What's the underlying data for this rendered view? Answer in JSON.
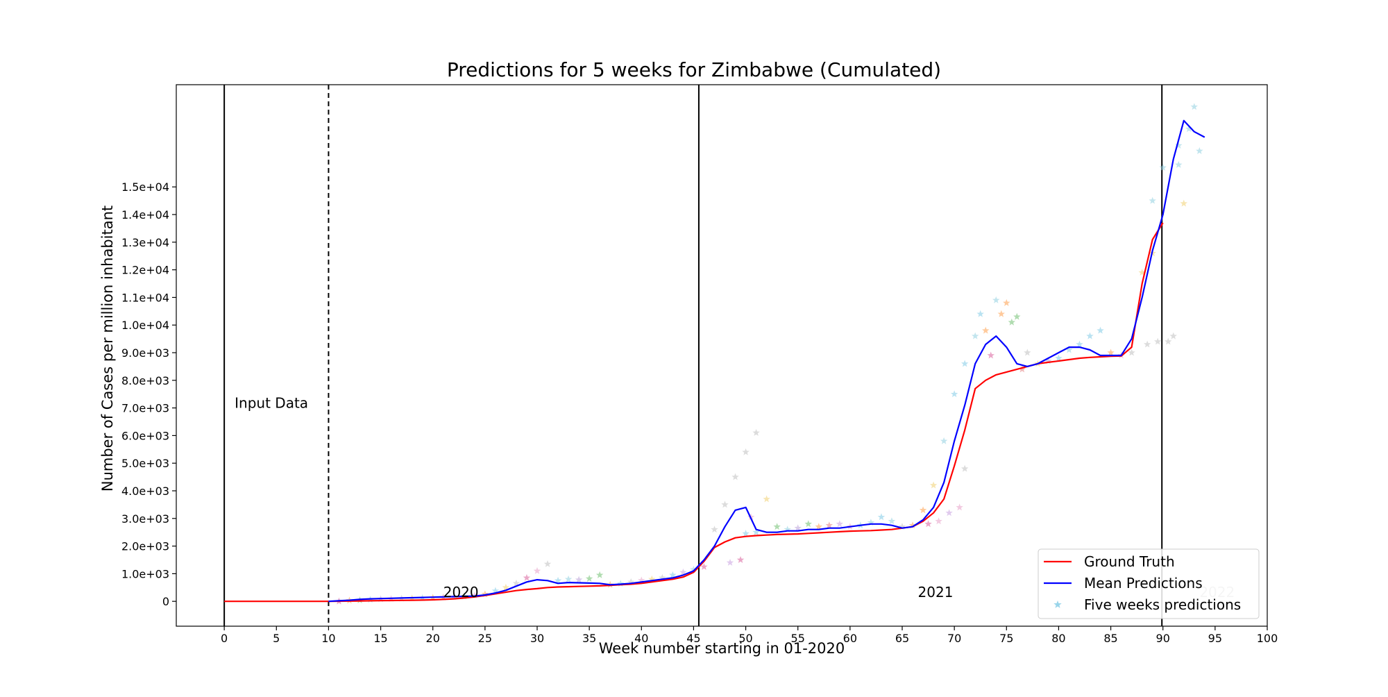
{
  "chart_data": {
    "type": "line",
    "title": "Predictions for 5 weeks for Zimbabwe (Cumulated)",
    "xlabel": "Week number starting in 01-2020",
    "ylabel": "Number of Cases per million inhabitant",
    "xlim": [
      -4.6,
      100
    ],
    "ylim": [
      -900,
      18700
    ],
    "x_ticks": [
      0,
      5,
      10,
      15,
      20,
      25,
      30,
      35,
      40,
      45,
      50,
      55,
      60,
      65,
      70,
      75,
      80,
      85,
      90,
      95,
      100
    ],
    "y_ticks": [
      0,
      1000,
      2000,
      3000,
      4000,
      5000,
      6000,
      7000,
      8000,
      9000,
      10000,
      11000,
      12000,
      13000,
      14000,
      15000
    ],
    "y_tick_labels": [
      "0",
      "1.0e+03",
      "2.0e+03",
      "3.0e+03",
      "4.0e+03",
      "5.0e+03",
      "6.0e+03",
      "7.0e+03",
      "8.0e+03",
      "9.0e+03",
      "1.0e+04",
      "1.1e+04",
      "1.2e+04",
      "1.3e+04",
      "1.4e+04",
      "1.5e+04"
    ],
    "grid": false,
    "legend_position": "lower right",
    "vertical_lines": [
      {
        "x": 0,
        "style": "solid"
      },
      {
        "x": 10,
        "style": "dashed"
      },
      {
        "x": 45.5,
        "style": "solid"
      },
      {
        "x": 89.9,
        "style": "solid"
      }
    ],
    "annotations": [
      {
        "text": "Input Data",
        "x": 1,
        "y": 7000,
        "color": "#000000"
      },
      {
        "text": "2020",
        "x": 21,
        "y": 150,
        "color": "#000000"
      },
      {
        "text": "2021",
        "x": 66.5,
        "y": 150,
        "color": "#000000"
      },
      {
        "text": "2022",
        "x": 93.5,
        "y": 150,
        "color": "#bbbbbb"
      }
    ],
    "series": [
      {
        "name": "Ground Truth",
        "color": "#ff0000",
        "x": [
          0,
          1,
          2,
          3,
          4,
          5,
          6,
          7,
          8,
          9,
          10,
          11,
          12,
          13,
          14,
          15,
          16,
          17,
          18,
          19,
          20,
          21,
          22,
          23,
          24,
          25,
          26,
          27,
          28,
          29,
          30,
          31,
          32,
          33,
          34,
          35,
          36,
          37,
          38,
          39,
          40,
          41,
          42,
          43,
          44,
          45,
          46,
          47,
          48,
          49,
          50,
          51,
          52,
          53,
          54,
          55,
          56,
          57,
          58,
          59,
          60,
          61,
          62,
          63,
          64,
          65,
          66,
          67,
          68,
          69,
          70,
          71,
          72,
          73,
          74,
          75,
          76,
          77,
          78,
          79,
          80,
          81,
          82,
          83,
          84,
          85,
          86,
          87,
          88,
          89,
          90
        ],
        "y": [
          0,
          0,
          0,
          0,
          0,
          0,
          0,
          0,
          0,
          0,
          0,
          5,
          10,
          15,
          20,
          25,
          30,
          35,
          40,
          45,
          55,
          70,
          90,
          120,
          160,
          210,
          270,
          330,
          390,
          430,
          460,
          500,
          520,
          530,
          540,
          550,
          560,
          580,
          600,
          620,
          650,
          700,
          750,
          800,
          880,
          1050,
          1450,
          1950,
          2150,
          2300,
          2350,
          2380,
          2400,
          2420,
          2430,
          2440,
          2460,
          2480,
          2500,
          2520,
          2540,
          2550,
          2560,
          2580,
          2600,
          2650,
          2700,
          2900,
          3200,
          3700,
          4900,
          6200,
          7700,
          8000,
          8200,
          8300,
          8400,
          8500,
          8600,
          8650,
          8700,
          8750,
          8800,
          8830,
          8850,
          8870,
          8880,
          9200,
          11500,
          13100,
          13700
        ]
      },
      {
        "name": "Mean Predictions",
        "color": "#0000ff",
        "x": [
          10,
          11,
          12,
          13,
          14,
          15,
          16,
          17,
          18,
          19,
          20,
          21,
          22,
          23,
          24,
          25,
          26,
          27,
          28,
          29,
          30,
          31,
          32,
          33,
          34,
          35,
          36,
          37,
          38,
          39,
          40,
          41,
          42,
          43,
          44,
          45,
          46,
          47,
          48,
          49,
          50,
          51,
          52,
          53,
          54,
          55,
          56,
          57,
          58,
          59,
          60,
          61,
          62,
          63,
          64,
          65,
          66,
          67,
          68,
          69,
          70,
          71,
          72,
          73,
          74,
          75,
          76,
          77,
          78,
          79,
          80,
          81,
          82,
          83,
          84,
          85,
          86,
          87,
          88,
          89,
          90,
          91,
          92,
          93,
          94
        ],
        "y": [
          0,
          20,
          40,
          70,
          90,
          100,
          110,
          120,
          130,
          140,
          150,
          160,
          170,
          180,
          190,
          230,
          300,
          400,
          550,
          700,
          780,
          750,
          650,
          680,
          670,
          660,
          650,
          600,
          620,
          650,
          700,
          750,
          800,
          850,
          950,
          1100,
          1500,
          2000,
          2700,
          3300,
          3400,
          2600,
          2500,
          2500,
          2550,
          2550,
          2600,
          2600,
          2650,
          2650,
          2700,
          2750,
          2800,
          2800,
          2750,
          2650,
          2700,
          2950,
          3400,
          4300,
          5800,
          7100,
          8600,
          9300,
          9600,
          9200,
          8600,
          8500,
          8600,
          8800,
          9000,
          9200,
          9200,
          9100,
          8900,
          8900,
          8900,
          9500,
          11000,
          12700,
          14000,
          16000,
          17400,
          17000,
          16800
        ]
      },
      {
        "name": "Five weeks predictions",
        "type": "scatter",
        "marker": "star",
        "color": "#7fcbe5",
        "points": [
          [
            11,
            0,
            "#d95f9a"
          ],
          [
            12,
            30,
            "#ff9f4a"
          ],
          [
            13,
            40,
            "#6fbf6f"
          ],
          [
            14,
            60,
            "#7fcbe5"
          ],
          [
            15,
            80,
            "#b9a0d8"
          ],
          [
            16,
            90,
            "#e8a0c8"
          ],
          [
            17,
            100,
            "#c0c0c0"
          ],
          [
            18,
            110,
            "#f0d070"
          ],
          [
            19,
            120,
            "#8fd0e0"
          ],
          [
            20,
            130,
            "#ff9f4a"
          ],
          [
            21,
            140,
            "#e37e7e"
          ],
          [
            22,
            160,
            "#c8a0e0"
          ],
          [
            23,
            180,
            "#6fbf6f"
          ],
          [
            24,
            210,
            "#e8a0c8"
          ],
          [
            25,
            260,
            "#ff9f4a"
          ],
          [
            26,
            380,
            "#7fcbe5"
          ],
          [
            27,
            500,
            "#f0d070"
          ],
          [
            28,
            650,
            "#c0c0c0"
          ],
          [
            29,
            850,
            "#d95f9a"
          ],
          [
            30,
            1100,
            "#e8a0c8"
          ],
          [
            31,
            1350,
            "#c0c0c0"
          ],
          [
            32,
            750,
            "#7fcbe5"
          ],
          [
            33,
            800,
            "#8fd0e0"
          ],
          [
            34,
            780,
            "#b9a0d8"
          ],
          [
            35,
            820,
            "#6fbf6f"
          ],
          [
            36,
            950,
            "#6fbf6f"
          ],
          [
            37,
            600,
            "#ff9f4a"
          ],
          [
            38,
            640,
            "#8fd0e0"
          ],
          [
            39,
            700,
            "#c0c0c0"
          ],
          [
            40,
            760,
            "#e8a0c8"
          ],
          [
            41,
            800,
            "#f0d070"
          ],
          [
            42,
            850,
            "#c0c0c0"
          ],
          [
            43,
            950,
            "#7fcbe5"
          ],
          [
            44,
            1050,
            "#c8a0e0"
          ],
          [
            45,
            1150,
            "#8fd0e0"
          ],
          [
            46,
            1250,
            "#d95f9a"
          ],
          [
            47,
            2600,
            "#c0c0c0"
          ],
          [
            48,
            3500,
            "#c0c0c0"
          ],
          [
            48.5,
            1400,
            "#c8a0e0"
          ],
          [
            49,
            4500,
            "#c0c0c0"
          ],
          [
            49.5,
            1500,
            "#d95f9a"
          ],
          [
            50,
            5400,
            "#c0c0c0"
          ],
          [
            50.5,
            3050,
            "#e8a0c8"
          ],
          [
            51,
            6100,
            "#c0c0c0"
          ],
          [
            52,
            3700,
            "#f0d070"
          ],
          [
            50,
            2450,
            "#7fcbe5"
          ],
          [
            51,
            2500,
            "#7fcbe5"
          ],
          [
            53,
            2700,
            "#6fbf6f"
          ],
          [
            54,
            2600,
            "#8fd0e0"
          ],
          [
            55,
            2650,
            "#b9a0d8"
          ],
          [
            56,
            2800,
            "#6fbf6f"
          ],
          [
            57,
            2700,
            "#ff9f4a"
          ],
          [
            58,
            2750,
            "#e37e7e"
          ],
          [
            59,
            2800,
            "#c8a0e0"
          ],
          [
            60,
            2700,
            "#e8a0c8"
          ],
          [
            61,
            2750,
            "#7fcbe5"
          ],
          [
            62,
            2850,
            "#8fd0e0"
          ],
          [
            63,
            3050,
            "#7fcbe5"
          ],
          [
            64,
            2900,
            "#8fd0e0"
          ],
          [
            65,
            2700,
            "#c0c0c0"
          ],
          [
            66,
            2750,
            "#ff9f4a"
          ],
          [
            67,
            3300,
            "#ff9f4a"
          ],
          [
            67.5,
            2800,
            "#d95f9a"
          ],
          [
            68,
            4200,
            "#f0d070"
          ],
          [
            68.5,
            2900,
            "#e8a0c8"
          ],
          [
            69,
            5800,
            "#8fd0e0"
          ],
          [
            69.5,
            3200,
            "#c8a0e0"
          ],
          [
            70,
            7500,
            "#7fcbe5"
          ],
          [
            70.5,
            3400,
            "#e8a0c8"
          ],
          [
            71,
            8600,
            "#7fcbe5"
          ],
          [
            71,
            4800,
            "#c0c0c0"
          ],
          [
            72,
            9600,
            "#8fd0e0"
          ],
          [
            72.5,
            10400,
            "#7fcbe5"
          ],
          [
            73,
            9800,
            "#ff9f4a"
          ],
          [
            73.5,
            8900,
            "#d95f9a"
          ],
          [
            74,
            10900,
            "#8fd0e0"
          ],
          [
            74.5,
            10400,
            "#ff9f4a"
          ],
          [
            75,
            10800,
            "#ff9f4a"
          ],
          [
            75.5,
            10100,
            "#6fbf6f"
          ],
          [
            76,
            10300,
            "#6fbf6f"
          ],
          [
            76.5,
            8400,
            "#e37e7e"
          ],
          [
            77,
            9000,
            "#c0c0c0"
          ],
          [
            78,
            8600,
            "#f0d070"
          ],
          [
            79,
            8700,
            "#b9a0d8"
          ],
          [
            80,
            8800,
            "#7fcbe5"
          ],
          [
            81,
            9100,
            "#8fd0e0"
          ],
          [
            82,
            9300,
            "#7fcbe5"
          ],
          [
            83,
            9600,
            "#7fcbe5"
          ],
          [
            84,
            9800,
            "#7fcbe5"
          ],
          [
            85,
            9000,
            "#ff9f4a"
          ],
          [
            86,
            8900,
            "#e8a0c8"
          ],
          [
            87,
            9000,
            "#c0c0c0"
          ],
          [
            88,
            11900,
            "#f0d070"
          ],
          [
            88.5,
            9300,
            "#c0c0c0"
          ],
          [
            89,
            12600,
            "#f0d070"
          ],
          [
            89,
            14500,
            "#8fd0e0"
          ],
          [
            89.5,
            9400,
            "#c0c0c0"
          ],
          [
            90,
            15700,
            "#8fd0e0"
          ],
          [
            90.5,
            9400,
            "#c0c0c0"
          ],
          [
            91,
            9600,
            "#c0c0c0"
          ],
          [
            91.5,
            16500,
            "#8fd0e0"
          ],
          [
            91.5,
            15800,
            "#8fd0e0"
          ],
          [
            92,
            14400,
            "#f0d070"
          ],
          [
            92.5,
            17100,
            "#8fd0e0"
          ],
          [
            93,
            17900,
            "#8fd0e0"
          ],
          [
            93.5,
            16300,
            "#8fd0e0"
          ]
        ]
      }
    ]
  }
}
